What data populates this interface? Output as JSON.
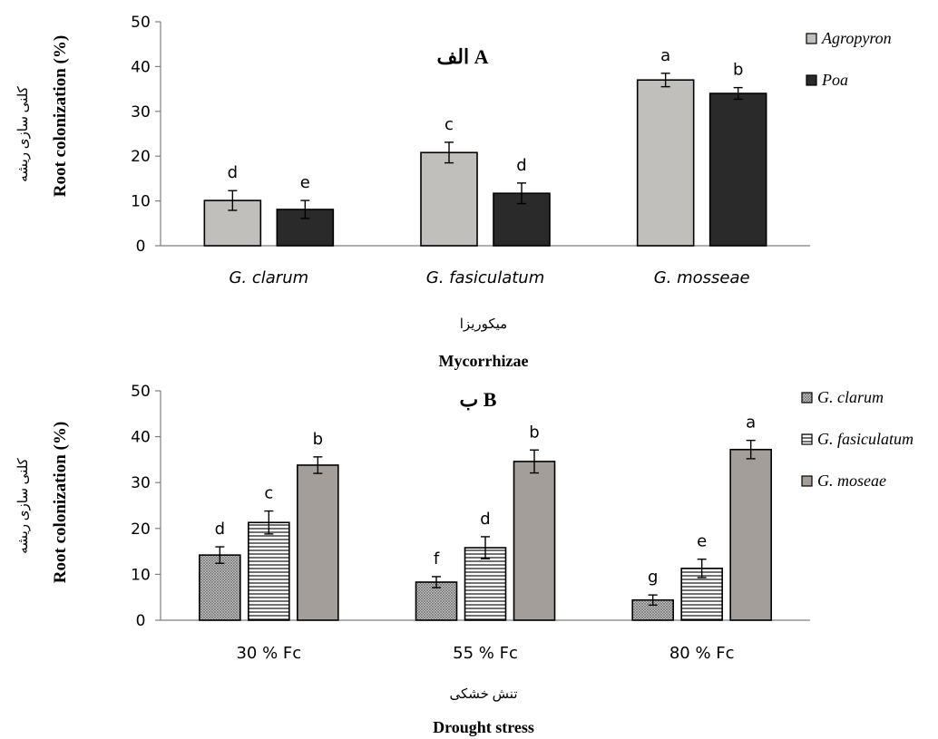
{
  "chart_data": [
    {
      "type": "bar",
      "panel_label": "الف A",
      "ylabel": "Root colonization (%)",
      "ylabel_fa": "کلنی سازی ریشه",
      "xlabel": "Mycorrhizae",
      "xlabel_fa": "میکوریزا",
      "ylim": [
        0,
        50
      ],
      "yticks": [
        "0",
        "10",
        "20",
        "30",
        "40",
        "50"
      ],
      "categories": [
        "G. clarum",
        "G. fasiculatum",
        "G. mosseae"
      ],
      "legend_position": "right",
      "series": [
        {
          "name": "Agropyron",
          "color": "#c0bfbc",
          "pattern": "solid",
          "values": [
            10.1,
            20.8,
            37.0
          ],
          "errors": [
            2.2,
            2.3,
            1.5
          ],
          "letters": [
            "d",
            "c",
            "a"
          ]
        },
        {
          "name": "Poa",
          "color": "#2a2a2a",
          "pattern": "solid",
          "values": [
            8.1,
            11.7,
            34.0
          ],
          "errors": [
            2.0,
            2.3,
            1.3
          ],
          "letters": [
            "e",
            "d",
            "b"
          ]
        }
      ]
    },
    {
      "type": "bar",
      "panel_label": "ب B",
      "ylabel": "Root colonization (%)",
      "ylabel_fa": "کلنی سازی ریشه",
      "xlabel": "Drought stress",
      "xlabel_fa": "تنش خشکی",
      "ylim": [
        0,
        50
      ],
      "yticks": [
        "0",
        "10",
        "20",
        "30",
        "40",
        "50"
      ],
      "categories": [
        "30 % Fc",
        "55 % Fc",
        "80 % Fc"
      ],
      "legend_position": "right",
      "series": [
        {
          "name": "G. clarum",
          "color": "#b4b4b4",
          "pattern": "crosshatch",
          "values": [
            14.2,
            8.3,
            4.4
          ],
          "errors": [
            1.8,
            1.2,
            1.1
          ],
          "letters": [
            "d",
            "f",
            "g"
          ]
        },
        {
          "name": "G. fasiculatum",
          "color": "#ffffff",
          "pattern": "horizontal-lines",
          "values": [
            21.3,
            15.8,
            11.3
          ],
          "errors": [
            2.5,
            2.4,
            2.0
          ],
          "letters": [
            "c",
            "d",
            "e"
          ]
        },
        {
          "name": "G. moseae",
          "color": "#a39e99",
          "pattern": "solid",
          "values": [
            33.8,
            34.6,
            37.2
          ],
          "errors": [
            1.8,
            2.5,
            2.0
          ],
          "letters": [
            "b",
            "b",
            "a"
          ]
        }
      ]
    }
  ]
}
